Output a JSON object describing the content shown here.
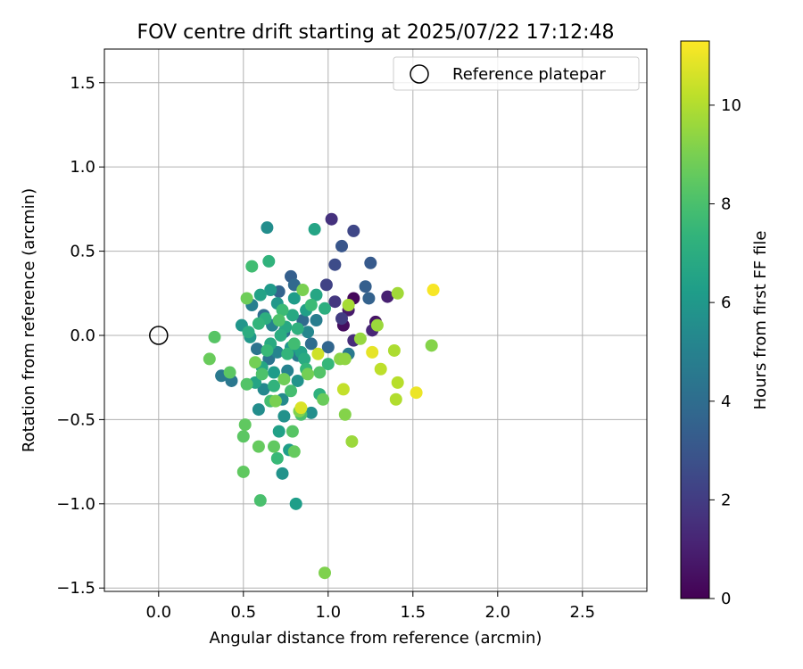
{
  "chart_data": {
    "type": "scatter",
    "title": "FOV centre drift starting at 2025/07/22 17:12:48",
    "xlabel": "Angular distance from reference (arcmin)",
    "ylabel": "Rotation from reference (arcmin)",
    "xlim": [
      -0.32,
      2.88
    ],
    "ylim": [
      -1.52,
      1.7
    ],
    "xticks": [
      0.0,
      0.5,
      1.0,
      1.5,
      2.0,
      2.5
    ],
    "xtick_labels": [
      "0.0",
      "0.5",
      "1.0",
      "1.5",
      "2.0",
      "2.5"
    ],
    "yticks": [
      -1.5,
      -1.0,
      -0.5,
      0.0,
      0.5,
      1.0,
      1.5
    ],
    "ytick_labels": [
      "−1.5",
      "−1.0",
      "−0.5",
      "0.0",
      "0.5",
      "1.0",
      "1.5"
    ],
    "grid": true,
    "legend": {
      "position": "top-right",
      "entries": [
        {
          "label": "Reference platepar",
          "marker": "open-circle"
        }
      ]
    },
    "reference_point": {
      "x": 0.0,
      "y": 0.0
    },
    "colorbar": {
      "label": "Hours from first FF file",
      "min": 0,
      "max": 11.3,
      "ticks": [
        0,
        2,
        4,
        6,
        8,
        10
      ],
      "tick_labels": [
        "0",
        "2",
        "4",
        "6",
        "8",
        "10"
      ],
      "colormap": "viridis"
    },
    "series": [
      {
        "points": [
          {
            "x": 1.15,
            "y": 0.22,
            "h": 0.2
          },
          {
            "x": 1.09,
            "y": 0.06,
            "h": 0.4
          },
          {
            "x": 1.28,
            "y": 0.08,
            "h": 0.6
          },
          {
            "x": 1.12,
            "y": 0.15,
            "h": 0.8
          },
          {
            "x": 1.35,
            "y": 0.23,
            "h": 1.0
          },
          {
            "x": 1.26,
            "y": 0.03,
            "h": 1.2
          },
          {
            "x": 1.15,
            "y": -0.03,
            "h": 1.4
          },
          {
            "x": 1.02,
            "y": 0.69,
            "h": 1.6
          },
          {
            "x": 1.04,
            "y": 0.2,
            "h": 1.8
          },
          {
            "x": 1.08,
            "y": 0.1,
            "h": 2.0
          },
          {
            "x": 0.99,
            "y": 0.3,
            "h": 2.2
          },
          {
            "x": 1.15,
            "y": 0.62,
            "h": 2.4
          },
          {
            "x": 1.04,
            "y": 0.42,
            "h": 2.6
          },
          {
            "x": 1.08,
            "y": 0.53,
            "h": 3.0
          },
          {
            "x": 1.25,
            "y": 0.43,
            "h": 3.2
          },
          {
            "x": 1.22,
            "y": 0.29,
            "h": 3.4
          },
          {
            "x": 1.24,
            "y": 0.22,
            "h": 3.5
          },
          {
            "x": 0.78,
            "y": 0.35,
            "h": 3.4
          },
          {
            "x": 0.8,
            "y": 0.3,
            "h": 3.8
          },
          {
            "x": 0.71,
            "y": 0.26,
            "h": 3.6
          },
          {
            "x": 1.0,
            "y": -0.07,
            "h": 3.7
          },
          {
            "x": 0.85,
            "y": 0.09,
            "h": 3.9
          },
          {
            "x": 0.9,
            "y": -0.05,
            "h": 4.0
          },
          {
            "x": 0.62,
            "y": 0.12,
            "h": 4.1
          },
          {
            "x": 0.74,
            "y": 0.02,
            "h": 4.2
          },
          {
            "x": 0.58,
            "y": -0.08,
            "h": 4.3
          },
          {
            "x": 0.65,
            "y": -0.14,
            "h": 4.4
          },
          {
            "x": 0.43,
            "y": -0.27,
            "h": 4.5
          },
          {
            "x": 0.37,
            "y": -0.24,
            "h": 4.6
          },
          {
            "x": 1.12,
            "y": -0.11,
            "h": 4.6
          },
          {
            "x": 0.82,
            "y": -0.12,
            "h": 4.7
          },
          {
            "x": 0.93,
            "y": 0.09,
            "h": 4.8
          },
          {
            "x": 0.55,
            "y": 0.18,
            "h": 4.9
          },
          {
            "x": 0.67,
            "y": 0.06,
            "h": 5.0
          },
          {
            "x": 0.76,
            "y": -0.21,
            "h": 5.0
          },
          {
            "x": 0.7,
            "y": -0.1,
            "h": 5.1
          },
          {
            "x": 0.88,
            "y": 0.02,
            "h": 5.2
          },
          {
            "x": 0.62,
            "y": -0.32,
            "h": 5.3
          },
          {
            "x": 0.73,
            "y": -0.38,
            "h": 5.4
          },
          {
            "x": 0.64,
            "y": 0.64,
            "h": 5.5
          },
          {
            "x": 0.59,
            "y": -0.44,
            "h": 5.5
          },
          {
            "x": 0.9,
            "y": -0.46,
            "h": 5.6
          },
          {
            "x": 0.74,
            "y": -0.48,
            "h": 5.7
          },
          {
            "x": 0.73,
            "y": -0.82,
            "h": 5.8
          },
          {
            "x": 0.82,
            "y": -0.27,
            "h": 5.8
          },
          {
            "x": 0.49,
            "y": 0.06,
            "h": 5.9
          },
          {
            "x": 0.54,
            "y": -0.01,
            "h": 6.0
          },
          {
            "x": 0.7,
            "y": 0.19,
            "h": 6.0
          },
          {
            "x": 0.66,
            "y": 0.27,
            "h": 6.1
          },
          {
            "x": 0.78,
            "y": -0.07,
            "h": 6.1
          },
          {
            "x": 0.8,
            "y": 0.22,
            "h": 6.2
          },
          {
            "x": 0.68,
            "y": -0.22,
            "h": 6.2
          },
          {
            "x": 0.81,
            "y": -1.0,
            "h": 6.3
          },
          {
            "x": 0.77,
            "y": -0.68,
            "h": 6.3
          },
          {
            "x": 0.71,
            "y": -0.57,
            "h": 6.4
          },
          {
            "x": 0.87,
            "y": 0.15,
            "h": 6.4
          },
          {
            "x": 0.6,
            "y": 0.24,
            "h": 6.5
          },
          {
            "x": 0.84,
            "y": -0.1,
            "h": 6.5
          },
          {
            "x": 0.57,
            "y": -0.28,
            "h": 6.6
          },
          {
            "x": 0.92,
            "y": 0.63,
            "h": 6.6
          },
          {
            "x": 0.93,
            "y": 0.24,
            "h": 6.7
          },
          {
            "x": 0.61,
            "y": -0.19,
            "h": 6.7
          },
          {
            "x": 0.75,
            "y": 0.05,
            "h": 6.8
          },
          {
            "x": 0.79,
            "y": 0.12,
            "h": 6.8
          },
          {
            "x": 0.66,
            "y": -0.05,
            "h": 6.9
          },
          {
            "x": 0.86,
            "y": -0.14,
            "h": 6.9
          },
          {
            "x": 0.72,
            "y": 0.0,
            "h": 7.0
          },
          {
            "x": 0.53,
            "y": 0.02,
            "h": 7.0
          },
          {
            "x": 0.63,
            "y": 0.1,
            "h": 7.1
          },
          {
            "x": 0.98,
            "y": 0.16,
            "h": 7.1
          },
          {
            "x": 0.95,
            "y": -0.35,
            "h": 7.2
          },
          {
            "x": 0.82,
            "y": 0.04,
            "h": 7.2
          },
          {
            "x": 0.68,
            "y": -0.3,
            "h": 7.3
          },
          {
            "x": 0.65,
            "y": 0.44,
            "h": 7.3
          },
          {
            "x": 0.76,
            "y": -0.11,
            "h": 7.4
          },
          {
            "x": 0.59,
            "y": 0.07,
            "h": 7.4
          },
          {
            "x": 1.0,
            "y": -0.17,
            "h": 7.5
          },
          {
            "x": 0.87,
            "y": -0.2,
            "h": 7.5
          },
          {
            "x": 0.7,
            "y": -0.73,
            "h": 7.6
          },
          {
            "x": 0.64,
            "y": -0.09,
            "h": 7.6
          },
          {
            "x": 0.9,
            "y": 0.18,
            "h": 7.7
          },
          {
            "x": 0.73,
            "y": 0.15,
            "h": 7.7
          },
          {
            "x": 0.8,
            "y": -0.05,
            "h": 7.8
          },
          {
            "x": 0.55,
            "y": 0.41,
            "h": 7.8
          },
          {
            "x": 0.78,
            "y": -0.33,
            "h": 7.9
          },
          {
            "x": 0.66,
            "y": -0.39,
            "h": 7.9
          },
          {
            "x": 0.84,
            "y": -0.47,
            "h": 8.0
          },
          {
            "x": 0.6,
            "y": -0.98,
            "h": 8.0
          },
          {
            "x": 0.71,
            "y": 0.09,
            "h": 8.1
          },
          {
            "x": 0.61,
            "y": -0.23,
            "h": 8.1
          },
          {
            "x": 0.52,
            "y": -0.29,
            "h": 8.2
          },
          {
            "x": 0.95,
            "y": -0.22,
            "h": 8.2
          },
          {
            "x": 0.79,
            "y": -0.57,
            "h": 8.3
          },
          {
            "x": 0.33,
            "y": -0.01,
            "h": 8.3
          },
          {
            "x": 0.42,
            "y": -0.22,
            "h": 8.4
          },
          {
            "x": 0.5,
            "y": -0.6,
            "h": 8.4
          },
          {
            "x": 0.51,
            "y": -0.53,
            "h": 8.5
          },
          {
            "x": 0.68,
            "y": -0.66,
            "h": 8.5
          },
          {
            "x": 0.5,
            "y": -0.81,
            "h": 8.5
          },
          {
            "x": 0.59,
            "y": -0.66,
            "h": 8.6
          },
          {
            "x": 0.8,
            "y": -0.69,
            "h": 8.6
          },
          {
            "x": 0.97,
            "y": -0.38,
            "h": 8.7
          },
          {
            "x": 0.3,
            "y": -0.14,
            "h": 8.7
          },
          {
            "x": 0.52,
            "y": 0.22,
            "h": 8.8
          },
          {
            "x": 0.74,
            "y": -0.26,
            "h": 8.8
          },
          {
            "x": 0.57,
            "y": -0.16,
            "h": 8.9
          },
          {
            "x": 0.88,
            "y": -0.23,
            "h": 8.9
          },
          {
            "x": 0.69,
            "y": -0.39,
            "h": 9.0
          },
          {
            "x": 0.85,
            "y": 0.27,
            "h": 9.0
          },
          {
            "x": 0.98,
            "y": -1.41,
            "h": 9.1
          },
          {
            "x": 0.83,
            "y": -0.45,
            "h": 9.1
          },
          {
            "x": 1.61,
            "y": -0.06,
            "h": 9.2
          },
          {
            "x": 1.1,
            "y": -0.47,
            "h": 9.2
          },
          {
            "x": 1.07,
            "y": -0.14,
            "h": 9.3
          },
          {
            "x": 1.1,
            "y": -0.14,
            "h": 9.4
          },
          {
            "x": 1.19,
            "y": -0.02,
            "h": 9.5
          },
          {
            "x": 1.29,
            "y": 0.06,
            "h": 9.6
          },
          {
            "x": 1.14,
            "y": -0.63,
            "h": 9.6
          },
          {
            "x": 1.41,
            "y": 0.25,
            "h": 9.7
          },
          {
            "x": 1.12,
            "y": 0.18,
            "h": 9.8
          },
          {
            "x": 1.39,
            "y": -0.09,
            "h": 9.9
          },
          {
            "x": 1.4,
            "y": -0.38,
            "h": 10.0
          },
          {
            "x": 1.41,
            "y": -0.28,
            "h": 10.1
          },
          {
            "x": 1.31,
            "y": -0.2,
            "h": 10.2
          },
          {
            "x": 1.09,
            "y": -0.32,
            "h": 10.3
          },
          {
            "x": 0.94,
            "y": -0.11,
            "h": 10.5
          },
          {
            "x": 0.84,
            "y": -0.43,
            "h": 10.7
          },
          {
            "x": 1.26,
            "y": -0.1,
            "h": 10.9
          },
          {
            "x": 1.52,
            "y": -0.34,
            "h": 11.0
          },
          {
            "x": 1.62,
            "y": 0.27,
            "h": 11.2
          }
        ]
      }
    ]
  }
}
